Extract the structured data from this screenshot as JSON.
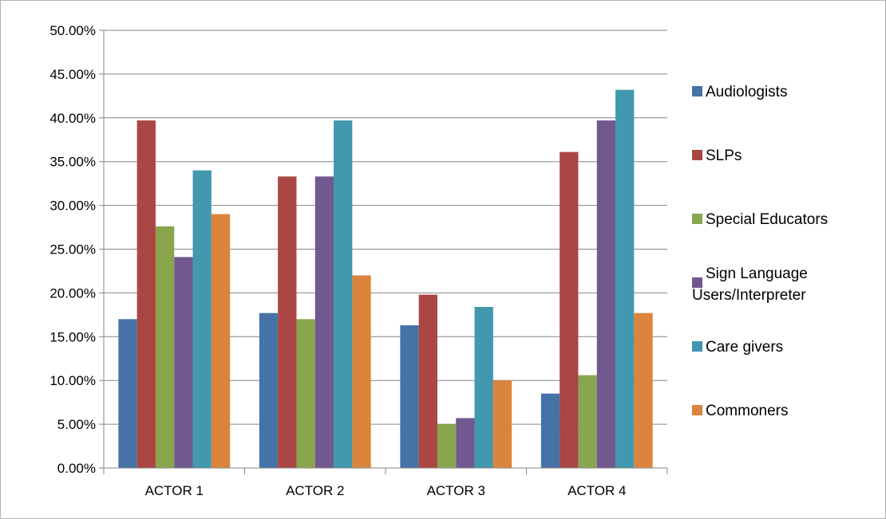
{
  "chart_data": {
    "type": "bar",
    "categories": [
      "ACTOR 1",
      "ACTOR 2",
      "ACTOR 3",
      "ACTOR 4"
    ],
    "series": [
      {
        "name": "Audiologists",
        "color": "#4572a7",
        "values": [
          0.17,
          0.177,
          0.163,
          0.085
        ]
      },
      {
        "name": "SLPs",
        "color": "#aa4643",
        "values": [
          0.397,
          0.333,
          0.198,
          0.361
        ]
      },
      {
        "name": "Special Educators",
        "color": "#89a54e",
        "values": [
          0.276,
          0.17,
          0.05,
          0.106
        ]
      },
      {
        "name": "Sign Language Users/Interpreter",
        "color": "#71588f",
        "values": [
          0.241,
          0.333,
          0.057,
          0.397
        ]
      },
      {
        "name": "Care givers",
        "color": "#4198af",
        "values": [
          0.34,
          0.397,
          0.184,
          0.432
        ]
      },
      {
        "name": "Commoners",
        "color": "#db843d",
        "values": [
          0.29,
          0.22,
          0.1,
          0.177
        ]
      }
    ],
    "yticks": [
      "0.00%",
      "5.00%",
      "10.00%",
      "15.00%",
      "20.00%",
      "25.00%",
      "30.00%",
      "35.00%",
      "40.00%",
      "45.00%",
      "50.00%"
    ],
    "ylim": [
      0,
      0.5
    ],
    "grid": true,
    "legend_position": "right",
    "title": "",
    "xlabel": "",
    "ylabel": ""
  }
}
